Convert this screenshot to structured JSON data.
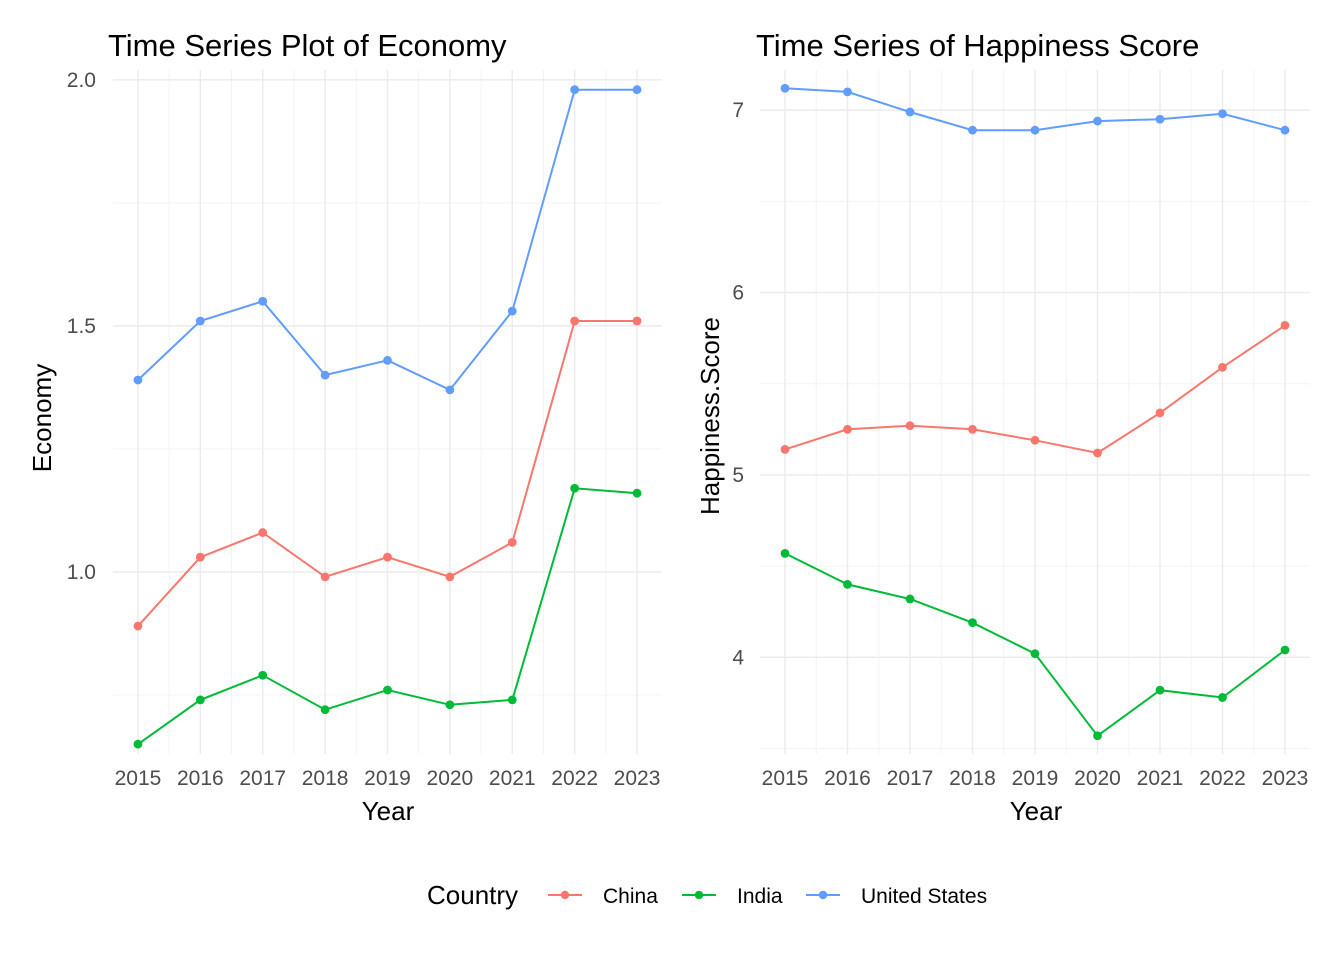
{
  "colors": {
    "China": "#F8766D",
    "India": "#00BA38",
    "United States": "#619CFF"
  },
  "legend": {
    "title": "Country",
    "position": "bottom",
    "items": [
      "China",
      "India",
      "United States"
    ]
  },
  "chart_data": [
    {
      "type": "line",
      "title": "Time Series Plot of Economy",
      "xlabel": "Year",
      "ylabel": "Economy",
      "x": [
        2015,
        2016,
        2017,
        2018,
        2019,
        2020,
        2021,
        2022,
        2023
      ],
      "xlim": [
        2014.6,
        2023.4
      ],
      "ylim": [
        0.63,
        2.02
      ],
      "yticks": [
        1.0,
        1.5,
        2.0
      ],
      "ytick_labels": [
        "1.0",
        "1.5",
        "2.0"
      ],
      "grid": true,
      "series": [
        {
          "name": "China",
          "values": [
            0.89,
            1.03,
            1.08,
            0.99,
            1.03,
            0.99,
            1.06,
            1.51,
            1.51
          ]
        },
        {
          "name": "India",
          "values": [
            0.65,
            0.74,
            0.79,
            0.72,
            0.76,
            0.73,
            0.74,
            1.17,
            1.16
          ]
        },
        {
          "name": "United States",
          "values": [
            1.39,
            1.51,
            1.55,
            1.4,
            1.43,
            1.37,
            1.53,
            1.98,
            1.98
          ]
        }
      ]
    },
    {
      "type": "line",
      "title": "Time Series of Happiness Score",
      "xlabel": "Year",
      "ylabel": "Happiness.Score",
      "x": [
        2015,
        2016,
        2017,
        2018,
        2019,
        2020,
        2021,
        2022,
        2023
      ],
      "xlim": [
        2014.6,
        2023.4
      ],
      "ylim": [
        3.47,
        7.22
      ],
      "yticks": [
        4,
        5,
        6,
        7
      ],
      "ytick_labels": [
        "4",
        "5",
        "6",
        "7"
      ],
      "grid": true,
      "series": [
        {
          "name": "China",
          "values": [
            5.14,
            5.25,
            5.27,
            5.25,
            5.19,
            5.12,
            5.34,
            5.59,
            5.82
          ]
        },
        {
          "name": "India",
          "values": [
            4.57,
            4.4,
            4.32,
            4.19,
            4.02,
            3.57,
            3.82,
            3.78,
            4.04
          ]
        },
        {
          "name": "United States",
          "values": [
            7.12,
            7.1,
            6.99,
            6.89,
            6.89,
            6.94,
            6.95,
            6.98,
            6.89
          ]
        }
      ]
    }
  ]
}
